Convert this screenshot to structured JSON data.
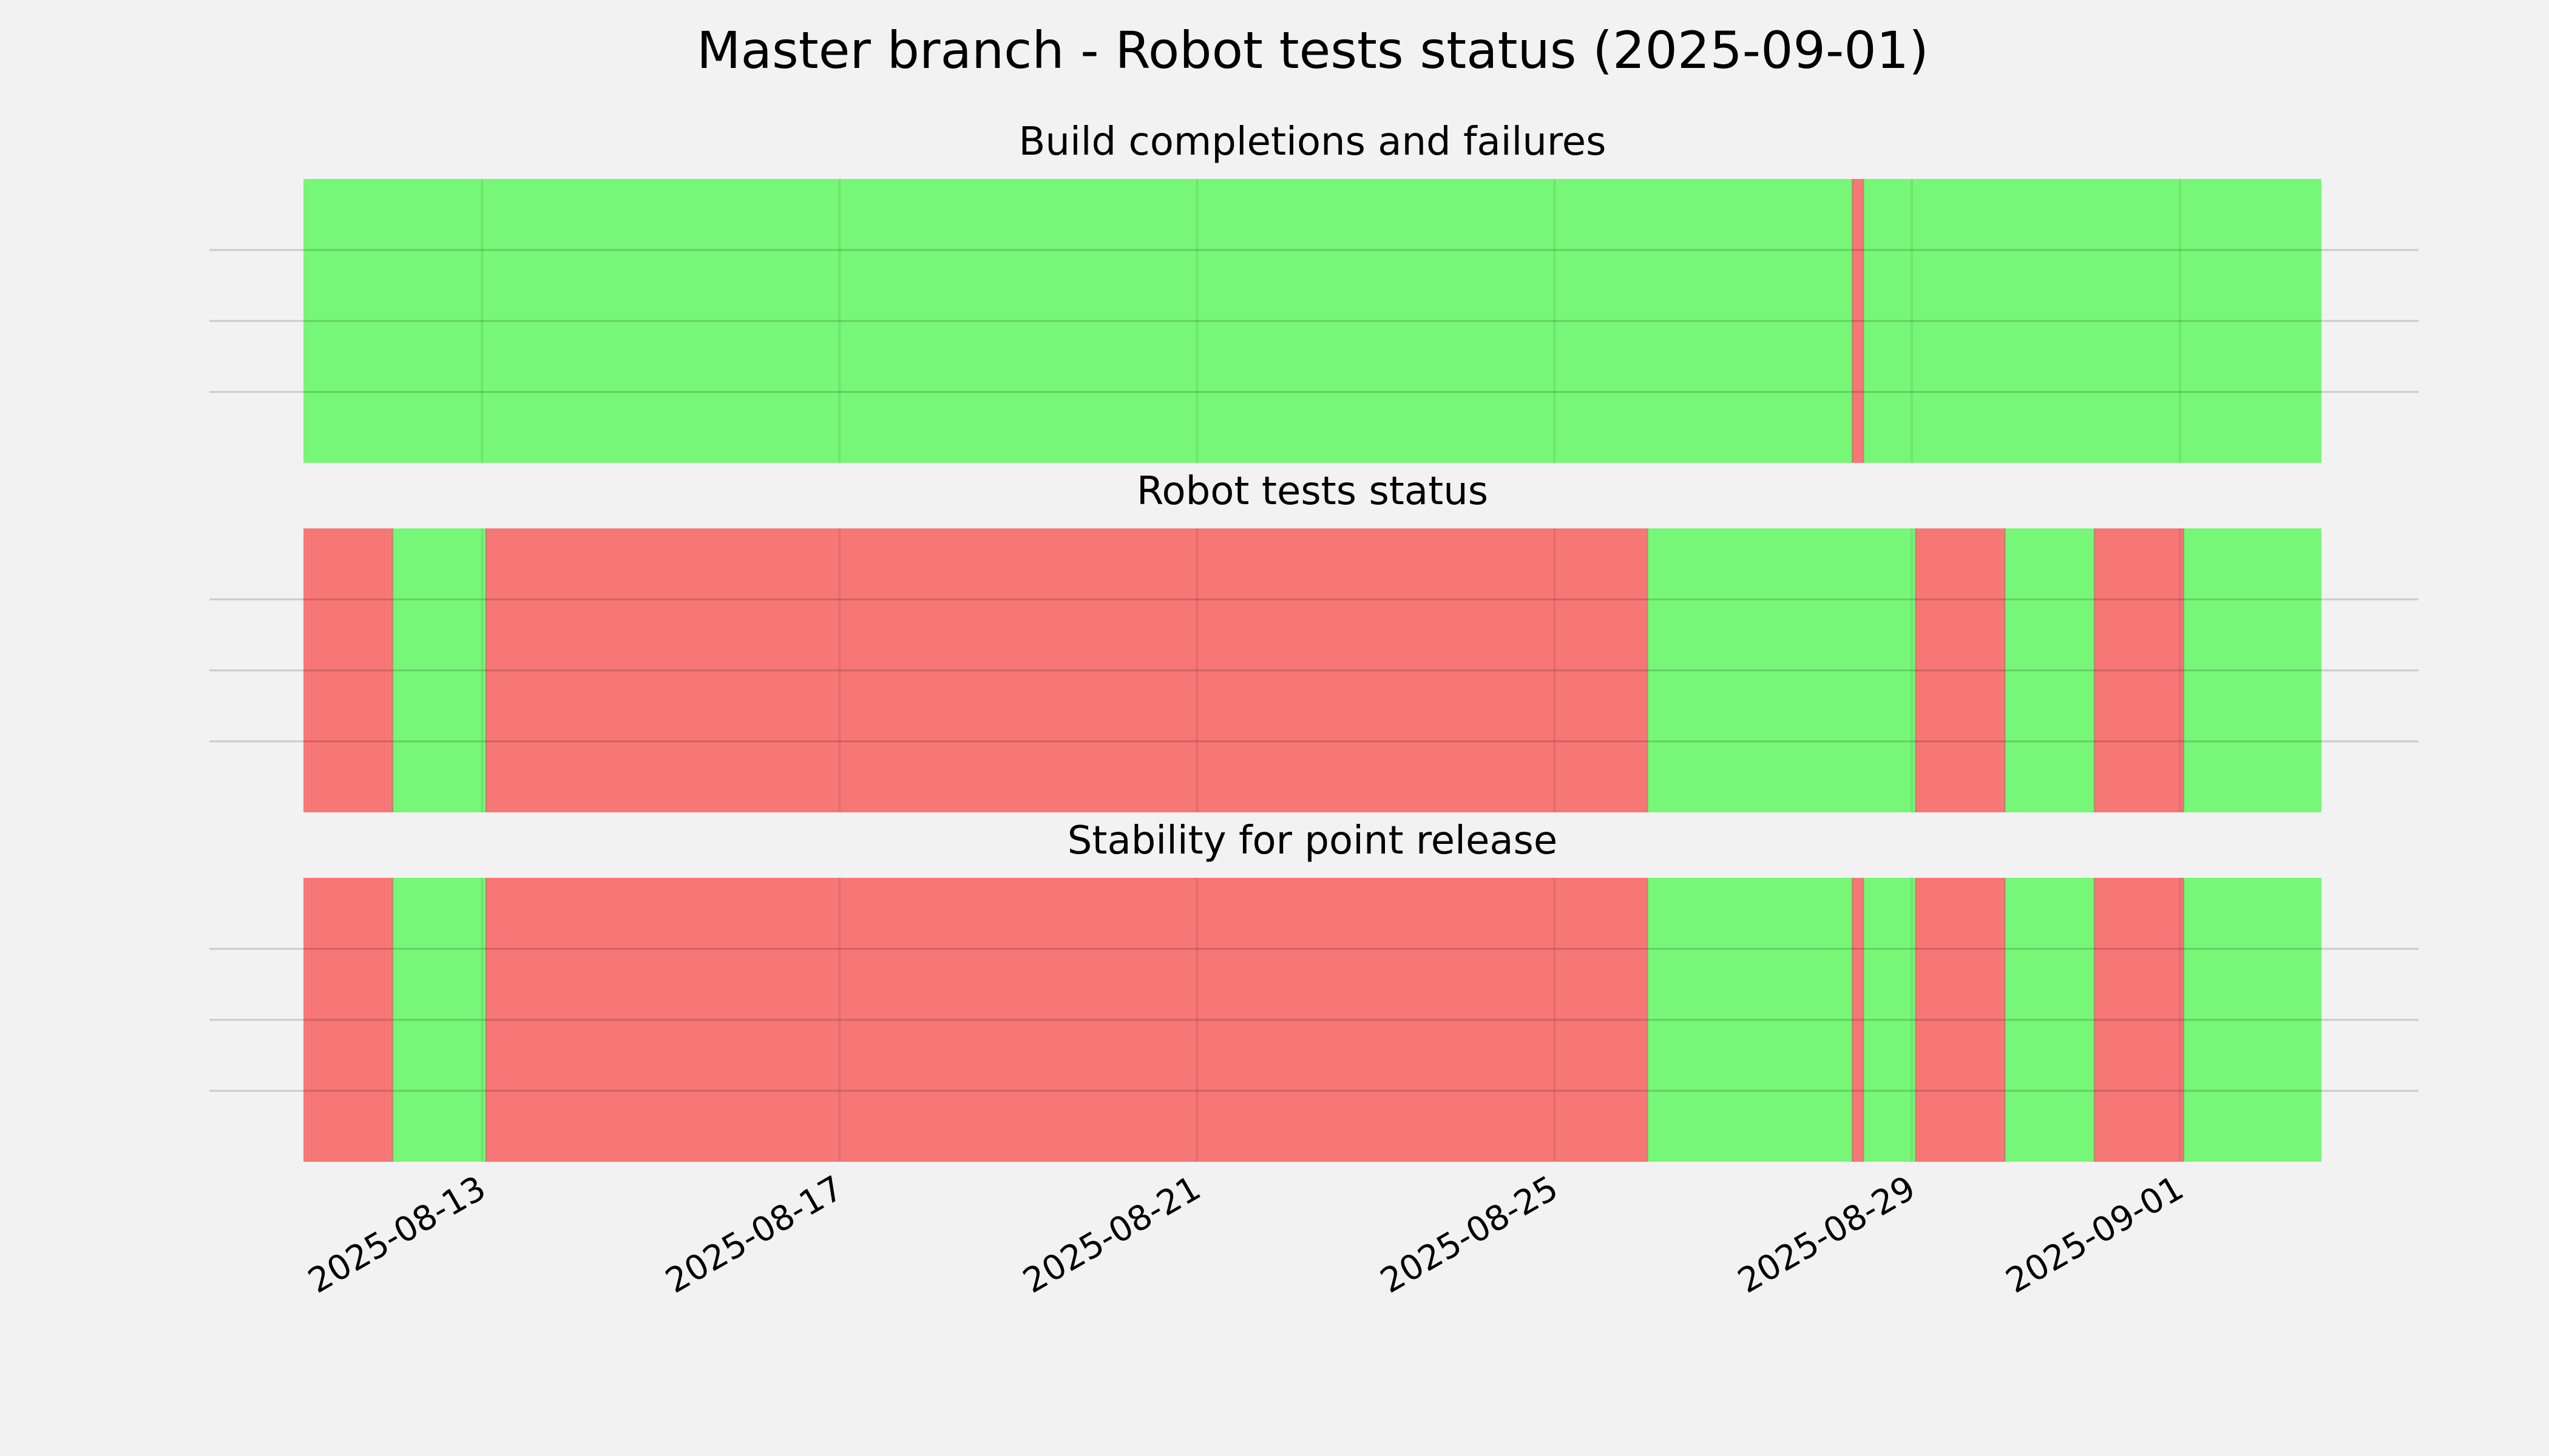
{
  "title": "Master branch - Robot tests status (2025-09-01)",
  "colors": {
    "background": "#f2f2f2",
    "pass": "#77f777",
    "fail": "#f77777",
    "grid": "#cbcbcb"
  },
  "chart_data": {
    "type": "timeline",
    "x_range": [
      "2025-08-11",
      "2025-09-02 14:00"
    ],
    "x_ticks": [
      "2025-08-13",
      "2025-08-17",
      "2025-08-21",
      "2025-08-25",
      "2025-08-29",
      "2025-09-01"
    ],
    "grid": true,
    "panels": [
      {
        "title": "Build completions and failures",
        "segments": [
          {
            "start": "2025-08-11",
            "end": "2025-08-28 08:00",
            "status": "pass"
          },
          {
            "start": "2025-08-28 08:00",
            "end": "2025-08-28 11:00",
            "status": "fail"
          },
          {
            "start": "2025-08-28 11:00",
            "end": "2025-09-02 14:00",
            "status": "pass"
          }
        ]
      },
      {
        "title": "Robot tests status",
        "segments": [
          {
            "start": "2025-08-11",
            "end": "2025-08-12",
            "status": "fail"
          },
          {
            "start": "2025-08-12",
            "end": "2025-08-13 01:00",
            "status": "pass"
          },
          {
            "start": "2025-08-13 01:00",
            "end": "2025-08-26 01:00",
            "status": "fail"
          },
          {
            "start": "2025-08-26 01:00",
            "end": "2025-08-29 01:00",
            "status": "pass"
          },
          {
            "start": "2025-08-29 01:00",
            "end": "2025-08-30 01:00",
            "status": "fail"
          },
          {
            "start": "2025-08-30 01:00",
            "end": "2025-08-31 01:00",
            "status": "pass"
          },
          {
            "start": "2025-08-31 01:00",
            "end": "2025-09-01 01:00",
            "status": "fail"
          },
          {
            "start": "2025-09-01 01:00",
            "end": "2025-09-02 14:00",
            "status": "pass"
          }
        ]
      },
      {
        "title": "Stability for point release",
        "segments": [
          {
            "start": "2025-08-11",
            "end": "2025-08-12",
            "status": "fail"
          },
          {
            "start": "2025-08-12",
            "end": "2025-08-13 01:00",
            "status": "pass"
          },
          {
            "start": "2025-08-13 01:00",
            "end": "2025-08-26 01:00",
            "status": "fail"
          },
          {
            "start": "2025-08-26 01:00",
            "end": "2025-08-28 08:00",
            "status": "pass"
          },
          {
            "start": "2025-08-28 08:00",
            "end": "2025-08-28 11:00",
            "status": "fail"
          },
          {
            "start": "2025-08-28 11:00",
            "end": "2025-08-29 01:00",
            "status": "pass"
          },
          {
            "start": "2025-08-29 01:00",
            "end": "2025-08-30 01:00",
            "status": "fail"
          },
          {
            "start": "2025-08-30 01:00",
            "end": "2025-08-31 01:00",
            "status": "pass"
          },
          {
            "start": "2025-08-31 01:00",
            "end": "2025-09-01 01:00",
            "status": "fail"
          },
          {
            "start": "2025-09-01 01:00",
            "end": "2025-09-02 14:00",
            "status": "pass"
          }
        ]
      }
    ]
  }
}
